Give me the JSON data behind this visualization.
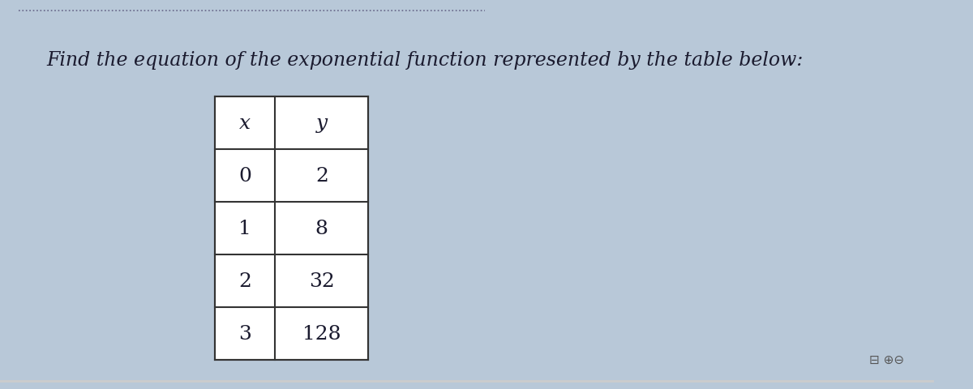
{
  "title": "Find the equation of the exponential function represented by the table below:",
  "title_fontsize": 17,
  "title_style": "italic",
  "title_color": "#1a1a2e",
  "background_color": "#b8c8d8",
  "table_x_header": "x",
  "table_y_header": "y",
  "table_data": [
    [
      0,
      2
    ],
    [
      1,
      8
    ],
    [
      2,
      32
    ],
    [
      3,
      128
    ]
  ],
  "table_font_size": 18,
  "header_font_style": "italic",
  "dotted_line_color": "#666688",
  "table_border_color": "#333333"
}
